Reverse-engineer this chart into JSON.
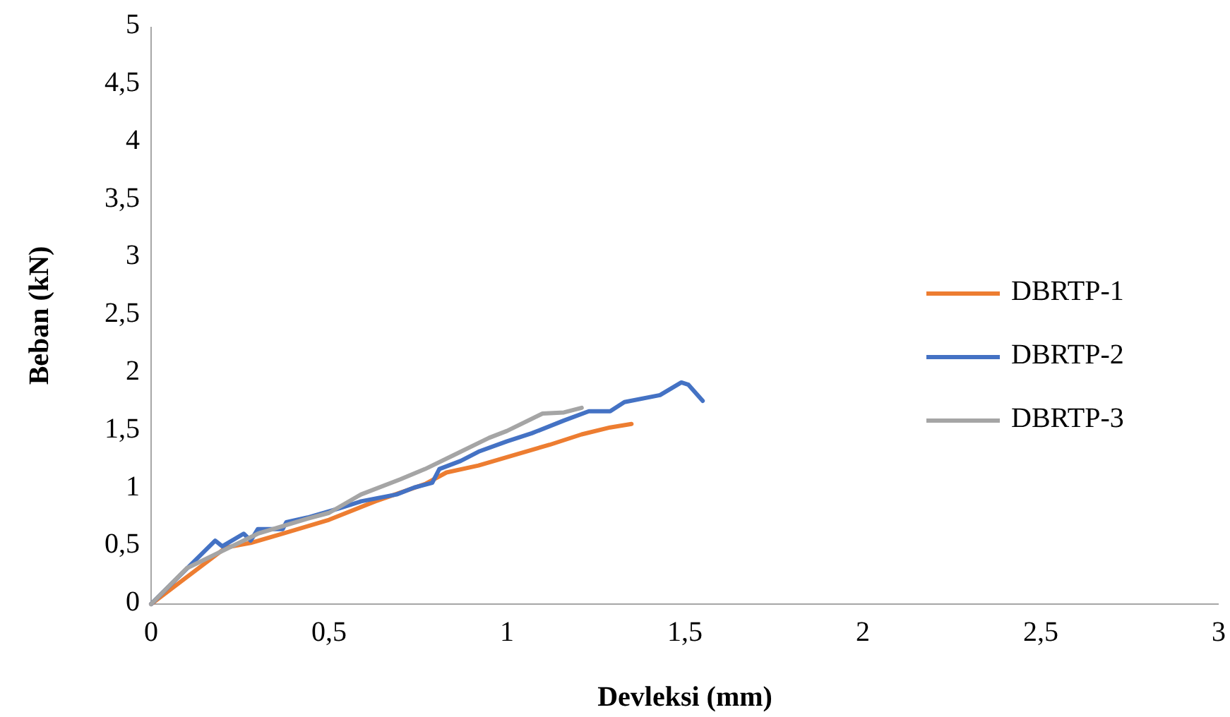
{
  "chart_data": {
    "type": "line",
    "xlabel": "Devleksi (mm)",
    "ylabel": "Beban (kN)",
    "xlim": [
      0,
      3
    ],
    "ylim": [
      0,
      5
    ],
    "xticks": [
      0,
      {
        "value": 0.5,
        "label": "0,5"
      },
      1,
      {
        "value": 1.5,
        "label": "1,5"
      },
      2,
      {
        "value": 2.5,
        "label": "2,5"
      },
      3
    ],
    "yticks": [
      0,
      {
        "value": 0.5,
        "label": "0,5"
      },
      1,
      {
        "value": 1.5,
        "label": "1,5"
      },
      2,
      {
        "value": 2.5,
        "label": "2,5"
      },
      3,
      {
        "value": 3.5,
        "label": "3,5"
      },
      4,
      {
        "value": 4.5,
        "label": "4,5"
      },
      5
    ],
    "grid": false,
    "legend": "right",
    "marker": "none",
    "line_style": "solid",
    "series": [
      {
        "name": "DBRTP-1",
        "color": "#ed7d31",
        "x": [
          0,
          0.21,
          0.28,
          0.37,
          0.5,
          0.63,
          0.77,
          0.83,
          0.92,
          1.03,
          1.12,
          1.21,
          1.29,
          1.35
        ],
        "values": [
          0,
          0.49,
          0.53,
          0.61,
          0.73,
          0.89,
          1.04,
          1.14,
          1.2,
          1.3,
          1.38,
          1.47,
          1.53,
          1.56
        ]
      },
      {
        "name": "DBRTP-2",
        "color": "#4472c4",
        "x": [
          0,
          0.18,
          0.2,
          0.26,
          0.28,
          0.3,
          0.37,
          0.38,
          0.44,
          0.53,
          0.59,
          0.69,
          0.74,
          0.79,
          0.81,
          0.87,
          0.92,
          1.0,
          1.07,
          1.16,
          1.23,
          1.29,
          1.33,
          1.43,
          1.49,
          1.51,
          1.55
        ],
        "values": [
          0,
          0.55,
          0.5,
          0.61,
          0.55,
          0.65,
          0.65,
          0.71,
          0.75,
          0.83,
          0.89,
          0.95,
          1.01,
          1.05,
          1.17,
          1.24,
          1.32,
          1.41,
          1.48,
          1.59,
          1.67,
          1.67,
          1.75,
          1.81,
          1.92,
          1.9,
          1.76
        ]
      },
      {
        "name": "DBRTP-3",
        "color": "#a5a5a5",
        "x": [
          0,
          0.1,
          0.3,
          0.44,
          0.5,
          0.59,
          0.7,
          0.77,
          0.85,
          0.95,
          1.0,
          1.1,
          1.16,
          1.21
        ],
        "values": [
          0,
          0.31,
          0.61,
          0.74,
          0.79,
          0.95,
          1.08,
          1.17,
          1.29,
          1.44,
          1.5,
          1.65,
          1.66,
          1.7
        ]
      }
    ]
  }
}
